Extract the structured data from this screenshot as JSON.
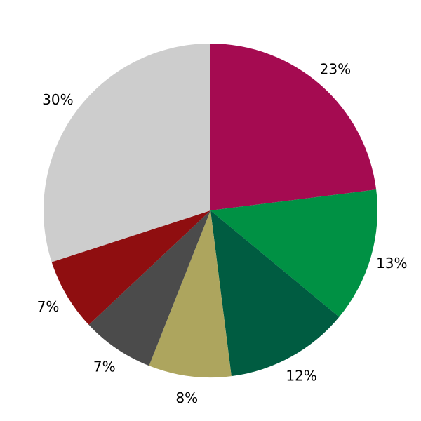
{
  "chart_data": {
    "type": "pie",
    "labels": [
      "23%",
      "13%",
      "12%",
      "8%",
      "7%",
      "7%",
      "30%"
    ],
    "values": [
      23,
      13,
      12,
      8,
      7,
      7,
      30
    ],
    "colors": [
      "#A50B51",
      "#009144",
      "#005C41",
      "#ADA55E",
      "#4B4B4B",
      "#8F0E10",
      "#CDCDCD"
    ],
    "title": "",
    "legend": false,
    "start_angle_deg": 90,
    "direction": "clockwise",
    "label_position": "outside",
    "label_color": "#000000",
    "background": "#FFFFFF"
  }
}
